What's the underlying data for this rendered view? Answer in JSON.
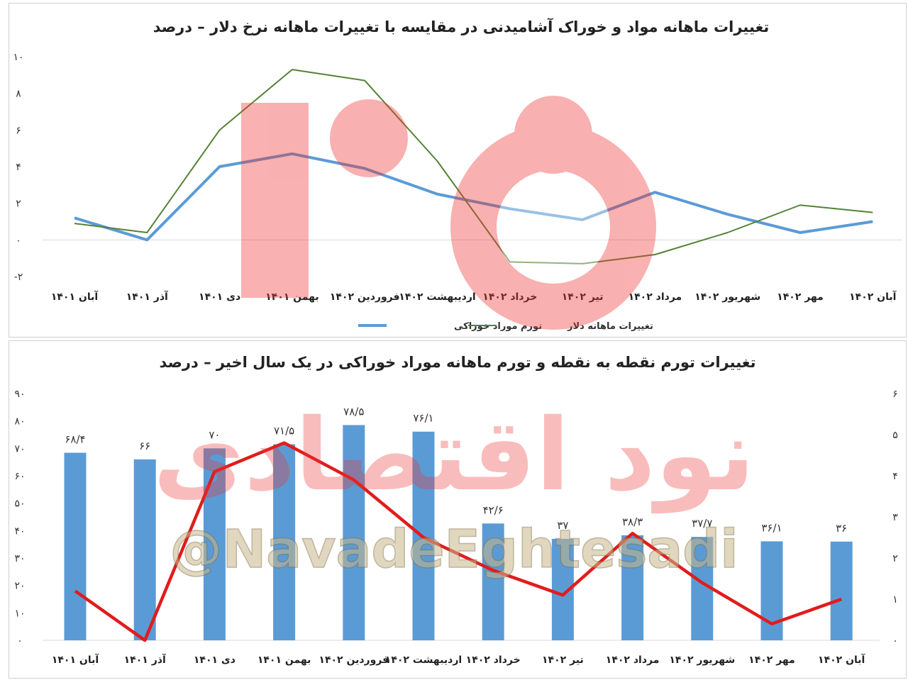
{
  "chart_data": [
    {
      "type": "line",
      "title": "تغییرات ماهانه مواد  و خوراک آشامیدنی در مقایسه با تغییرات ماهانه نرخ دلار – درصد",
      "categories": [
        "آبان ۱۴۰۱",
        "آذر ۱۴۰۱",
        "دی ۱۴۰۱",
        "بهمن ۱۴۰۱",
        "فروردین ۱۴۰۲",
        "اردیبهشت ۱۴۰۲",
        "خرداد ۱۴۰۲",
        "تیر ۱۴۰۲",
        "مرداد ۱۴۰۲",
        "شهریور ۱۴۰۲",
        "مهر ۱۴۰۲",
        "آبان ۱۴۰۲"
      ],
      "y_ticks": [
        {
          "value": 10,
          "label": "۱۰"
        },
        {
          "value": 8,
          "label": "۸"
        },
        {
          "value": 6,
          "label": "۶"
        },
        {
          "value": 4,
          "label": "۴"
        },
        {
          "value": 2,
          "label": "۲"
        },
        {
          "value": 0,
          "label": "۰"
        },
        {
          "value": -2,
          "label": "-۲"
        }
      ],
      "ylim": [
        -2,
        10
      ],
      "legend_position": "bottom",
      "series": [
        {
          "name": "تورم موراد خوراکی",
          "color": "#5b9bd5",
          "values": [
            1.2,
            0.0,
            4.0,
            4.7,
            3.9,
            2.5,
            1.7,
            1.1,
            2.6,
            1.4,
            0.4,
            1.0
          ]
        },
        {
          "name": "تغییرات ماهانه دلار",
          "color": "#548235",
          "values": [
            0.9,
            0.4,
            6.0,
            9.3,
            8.7,
            4.3,
            -1.2,
            -1.3,
            -0.8,
            0.4,
            1.9,
            1.5
          ]
        }
      ]
    },
    {
      "type": "bar",
      "title": "تغییرات تورم نقطه به نقطه و تورم ماهانه موراد خوراکی در یک سال اخیر – درصد",
      "categories": [
        "آبان ۱۴۰۱",
        "آذر ۱۴۰۱",
        "دی ۱۴۰۱",
        "بهمن ۱۴۰۱",
        "فروردین ۱۴۰۲",
        "اردیبهشت ۱۴۰۲",
        "خرداد ۱۴۰۲",
        "تیر ۱۴۰۲",
        "مرداد ۱۴۰۲",
        "شهریور ۱۴۰۲",
        "مهر ۱۴۰۲",
        "آبان ۱۴۰۲"
      ],
      "bar_values": [
        68.4,
        66,
        70,
        71.5,
        78.5,
        76.1,
        42.6,
        37,
        38.3,
        37.7,
        36.1,
        36
      ],
      "bar_labels": [
        "۶۸/۴",
        "۶۶",
        "۷۰",
        "۷۱/۵",
        "۷۸/۵",
        "۷۶/۱",
        "۴۲/۶",
        "۳۷",
        "۳۸/۳",
        "۳۷/۷",
        "۳۶/۱",
        "۳۶"
      ],
      "bar_color": "#5b9bd5",
      "line_values": [
        1.2,
        0.0,
        4.1,
        4.8,
        3.9,
        2.5,
        1.7,
        1.1,
        2.6,
        1.4,
        0.4,
        1.0
      ],
      "line_color": "#e11c1c",
      "left_ticks": [
        {
          "value": 90,
          "label": "۹۰"
        },
        {
          "value": 80,
          "label": "۸۰"
        },
        {
          "value": 70,
          "label": "۷۰"
        },
        {
          "value": 60,
          "label": "۶۰"
        },
        {
          "value": 50,
          "label": "۵۰"
        },
        {
          "value": 40,
          "label": "۴۰"
        },
        {
          "value": 30,
          "label": "۳۰"
        },
        {
          "value": 20,
          "label": "۲۰"
        },
        {
          "value": 10,
          "label": "۱۰"
        },
        {
          "value": 0,
          "label": "۰"
        }
      ],
      "right_ticks": [
        {
          "value": 6,
          "label": "۶"
        },
        {
          "value": 5,
          "label": "۵"
        },
        {
          "value": 4,
          "label": "۴"
        },
        {
          "value": 3,
          "label": "۳"
        },
        {
          "value": 2,
          "label": "۲"
        },
        {
          "value": 1,
          "label": "۱"
        },
        {
          "value": 0,
          "label": "۰"
        }
      ],
      "ylim_left": [
        0,
        90
      ],
      "ylim_right": [
        0,
        6
      ]
    }
  ],
  "watermark": {
    "logo_text": "نود",
    "brand_text": "نود اقتصادی",
    "handle": "@NavadeEghtesadi",
    "logo_color": "#f28c8c"
  }
}
